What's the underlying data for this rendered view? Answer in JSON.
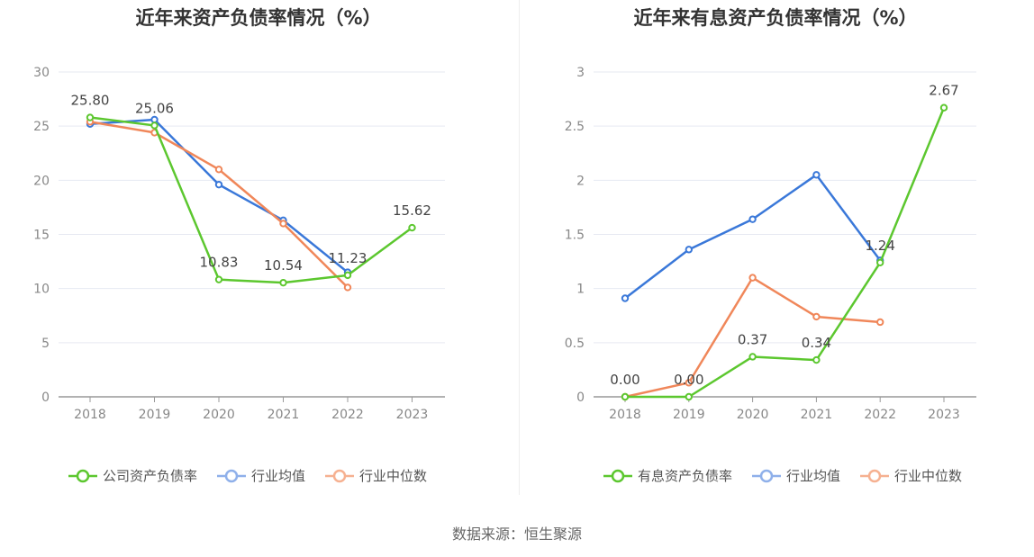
{
  "source_text": "数据来源：恒生聚源",
  "chart_data": [
    {
      "type": "line",
      "title": "近年来资产负债率情况（%）",
      "categories": [
        "2018",
        "2019",
        "2020",
        "2021",
        "2022",
        "2023"
      ],
      "ylim": [
        0,
        30
      ],
      "yticks": [
        "0",
        "5",
        "10",
        "15",
        "20",
        "25",
        "30"
      ],
      "ytick_values": [
        0,
        5,
        10,
        15,
        20,
        25,
        30
      ],
      "grid": true,
      "legend_position": "bottom",
      "series": [
        {
          "name": "公司资产负债率",
          "color": "#5cc72f",
          "values": [
            25.8,
            25.06,
            10.83,
            10.54,
            11.23,
            15.62
          ],
          "labels": [
            "25.80",
            "25.06",
            "10.83",
            "10.54",
            "11.23",
            "15.62"
          ]
        },
        {
          "name": "行业均值",
          "color": "#3a78d9",
          "values": [
            25.2,
            25.6,
            19.6,
            16.3,
            11.5,
            null
          ]
        },
        {
          "name": "行业中位数",
          "color": "#f0875a",
          "values": [
            25.4,
            24.4,
            21.0,
            16.0,
            10.1,
            null
          ]
        }
      ]
    },
    {
      "type": "line",
      "title": "近年来有息资产负债率情况（%）",
      "categories": [
        "2018",
        "2019",
        "2020",
        "2021",
        "2022",
        "2023"
      ],
      "ylim": [
        0,
        3
      ],
      "yticks": [
        "0",
        "0.5",
        "1",
        "1.5",
        "2",
        "2.5",
        "3"
      ],
      "ytick_values": [
        0,
        0.5,
        1,
        1.5,
        2,
        2.5,
        3
      ],
      "grid": true,
      "legend_position": "bottom",
      "series": [
        {
          "name": "有息资产负债率",
          "color": "#5cc72f",
          "values": [
            0.0,
            0.0,
            0.37,
            0.34,
            1.24,
            2.67
          ],
          "labels": [
            "0.00",
            "0.00",
            "0.37",
            "0.34",
            "1.24",
            "2.67"
          ]
        },
        {
          "name": "行业均值",
          "color": "#3a78d9",
          "values": [
            0.91,
            1.36,
            1.64,
            2.05,
            1.26,
            null
          ]
        },
        {
          "name": "行业中位数",
          "color": "#f0875a",
          "values": [
            0.0,
            0.13,
            1.1,
            0.74,
            0.69,
            null
          ]
        }
      ]
    }
  ]
}
